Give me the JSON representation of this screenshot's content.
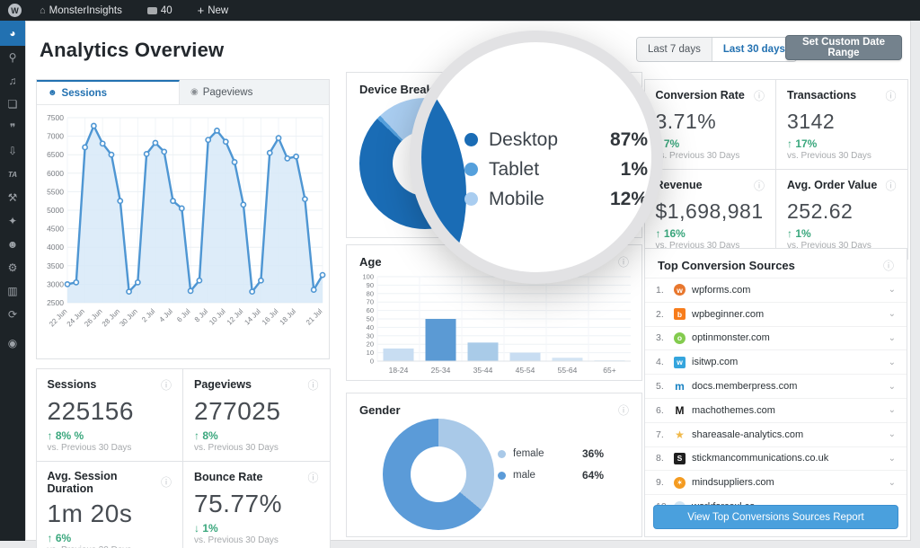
{
  "admin_bar": {
    "site": "MonsterInsights",
    "comments": "40",
    "new_label": "New"
  },
  "ui": {
    "info_icon": "ⓘ",
    "chevron_down": "⌄",
    "arrow_up": "↑",
    "arrow_down": "↓",
    "home_icon": "⌂",
    "plus_icon": "+",
    "wp_logo_letter": "W",
    "person_icon": "☻",
    "eye_icon": "◉"
  },
  "colors": {
    "positive": "#3aa77d",
    "link_blue": "#2271b1",
    "accent_blue": "#4aa0dd",
    "admin_dark": "#1d2327"
  },
  "sidebar": {
    "items": [
      {
        "name": "dashboard",
        "glyph": "◕",
        "active": true
      },
      {
        "name": "posts-pin",
        "glyph": "⚲",
        "active": false
      },
      {
        "name": "media",
        "glyph": "♫",
        "active": false
      },
      {
        "name": "pages",
        "glyph": "❏",
        "active": false
      },
      {
        "name": "comments",
        "glyph": "❞",
        "active": false
      },
      {
        "name": "downloads",
        "glyph": "⇩",
        "active": false
      },
      {
        "name": "ta",
        "glyph": "TA",
        "active": false
      },
      {
        "name": "tools-hammer",
        "glyph": "⚒",
        "active": false
      },
      {
        "name": "plugins",
        "glyph": "✦",
        "active": false
      },
      {
        "name": "users",
        "glyph": "☻",
        "active": false
      },
      {
        "name": "settings-gear",
        "glyph": "⚙",
        "active": false
      },
      {
        "name": "insights-panel",
        "glyph": "▥",
        "active": false
      },
      {
        "name": "updates",
        "glyph": "⟳",
        "active": false
      },
      {
        "name": "collapse",
        "glyph": "◉",
        "active": false
      }
    ]
  },
  "header": {
    "title": "Analytics Overview",
    "range": {
      "last7": "Last 7 days",
      "last30": "Last 30 days",
      "custom": "Set Custom Date Range"
    }
  },
  "tabs": {
    "sessions": "Sessions",
    "pageviews": "Pageviews"
  },
  "cards": {
    "device": "Device Breakdown",
    "age": "Age",
    "gender": "Gender"
  },
  "stats_left": [
    {
      "label": "Sessions",
      "value": "225156",
      "delta": "8% %",
      "dir": "up",
      "vs": "vs. Previous 30 Days"
    },
    {
      "label": "Pageviews",
      "value": "277025",
      "delta": "8%",
      "dir": "up",
      "vs": "vs. Previous 30 Days"
    },
    {
      "label": "Avg. Session Duration",
      "value": "1m 20s",
      "delta": "6%",
      "dir": "up",
      "vs": "vs. Previous 30 Days"
    },
    {
      "label": "Bounce Rate",
      "value": "75.77%",
      "delta": "1%",
      "dir": "down",
      "vs": "vs. Previous 30 Days"
    }
  ],
  "stats_right": [
    {
      "label": "Conversion Rate",
      "value": "3.71%",
      "delta": "7%",
      "dir": "up",
      "vs": "vs. Previous 30 Days"
    },
    {
      "label": "Transactions",
      "value": "3142",
      "delta": "17%",
      "dir": "up",
      "vs": "vs. Previous 30 Days"
    },
    {
      "label": "Revenue",
      "value": "$1,698,981",
      "delta": "16%",
      "dir": "up",
      "vs": "vs. Previous 30 Days"
    },
    {
      "label": "Avg. Order Value",
      "value": "252.62",
      "delta": "1%",
      "dir": "up",
      "vs": "vs. Previous 30 Days"
    }
  ],
  "sources": {
    "title": "Top Conversion Sources",
    "button": "View Top Conversions Sources Report",
    "items": [
      {
        "rank": "1.",
        "domain": "wpforms.com",
        "icon": {
          "bg": "#e8772e",
          "fg": "#ffffff",
          "glyph": "w",
          "shape": "circle"
        }
      },
      {
        "rank": "2.",
        "domain": "wpbeginner.com",
        "icon": {
          "bg": "#f77c1b",
          "fg": "#ffffff",
          "glyph": "b",
          "shape": "square"
        }
      },
      {
        "rank": "3.",
        "domain": "optinmonster.com",
        "icon": {
          "bg": "#83cb4e",
          "fg": "#ffffff",
          "glyph": "o",
          "shape": "circle"
        }
      },
      {
        "rank": "4.",
        "domain": "isitwp.com",
        "icon": {
          "bg": "#35a5dd",
          "fg": "#ffffff",
          "glyph": "w",
          "shape": "square"
        }
      },
      {
        "rank": "5.",
        "domain": "docs.memberpress.com",
        "icon": {
          "bg": "#ffffff",
          "fg": "#1781c2",
          "glyph": "m",
          "shape": "plain"
        }
      },
      {
        "rank": "6.",
        "domain": "machothemes.com",
        "icon": {
          "bg": "#ffffff",
          "fg": "#151515",
          "glyph": "M",
          "shape": "plain"
        }
      },
      {
        "rank": "7.",
        "domain": "shareasale-analytics.com",
        "icon": {
          "bg": "transparent",
          "fg": "#f0b849",
          "glyph": "★",
          "shape": "plain"
        }
      },
      {
        "rank": "8.",
        "domain": "stickmancommunications.co.uk",
        "icon": {
          "bg": "#1f1f1f",
          "fg": "#ffffff",
          "glyph": "S",
          "shape": "square"
        }
      },
      {
        "rank": "9.",
        "domain": "mindsuppliers.com",
        "icon": {
          "bg": "#f49b20",
          "fg": "#ffffff",
          "glyph": "✶",
          "shape": "circle"
        }
      },
      {
        "rank": "10.",
        "domain": "workforcexl.co",
        "icon": {
          "bg": "#cfe3f2",
          "fg": "#4a90c9",
          "glyph": "w",
          "shape": "circle"
        }
      }
    ]
  },
  "chart_data": [
    {
      "id": "sessions-trend",
      "type": "area",
      "title": "Sessions",
      "x_labels": [
        "22 Jun",
        "24 Jun",
        "26 Jun",
        "28 Jun",
        "30 Jun",
        "2 Jul",
        "4 Jul",
        "6 Jul",
        "8 Jul",
        "10 Jul",
        "12 Jul",
        "14 Jul",
        "16 Jul",
        "18 Jul",
        "21 Jul"
      ],
      "values": [
        3000,
        3050,
        6700,
        7280,
        6800,
        6500,
        5250,
        2800,
        3050,
        6520,
        6820,
        6580,
        5250,
        5050,
        2820,
        3100,
        6900,
        7150,
        6850,
        6300,
        5150,
        2800,
        3100,
        6550,
        6950,
        6400,
        6450,
        5300,
        2850,
        3250
      ],
      "ylim": [
        2500,
        7500
      ],
      "ytick": 500,
      "grid": true,
      "line_color": "#4e96d3",
      "fill_color": "#d7e9f8"
    },
    {
      "id": "device-breakdown",
      "type": "donut",
      "title": "Device Breakdown",
      "slices": [
        {
          "label": "Desktop",
          "value": 87,
          "color": "#1a6cb5"
        },
        {
          "label": "Tablet",
          "value": 1,
          "color": "#55a0dc"
        },
        {
          "label": "Mobile",
          "value": 12,
          "color": "#a9cdf0"
        }
      ],
      "legend_position": "right"
    },
    {
      "id": "age",
      "type": "bar",
      "title": "Age",
      "categories": [
        "18-24",
        "25-34",
        "35-44",
        "45-54",
        "55-64",
        "65+"
      ],
      "values": [
        15,
        50,
        22,
        10,
        4,
        1
      ],
      "colors": [
        "#c8ddf2",
        "#5b9ad4",
        "#a9cbe8",
        "#c8ddf2",
        "#d3e4f4",
        "#dcebf7"
      ],
      "ylim": [
        0,
        100
      ],
      "ytick": 10,
      "grid": true
    },
    {
      "id": "gender",
      "type": "donut",
      "title": "Gender",
      "slices": [
        {
          "label": "female",
          "value": 36,
          "color": "#a9c9e8"
        },
        {
          "label": "male",
          "value": 64,
          "color": "#5b9bd8"
        }
      ],
      "legend_position": "right"
    }
  ]
}
